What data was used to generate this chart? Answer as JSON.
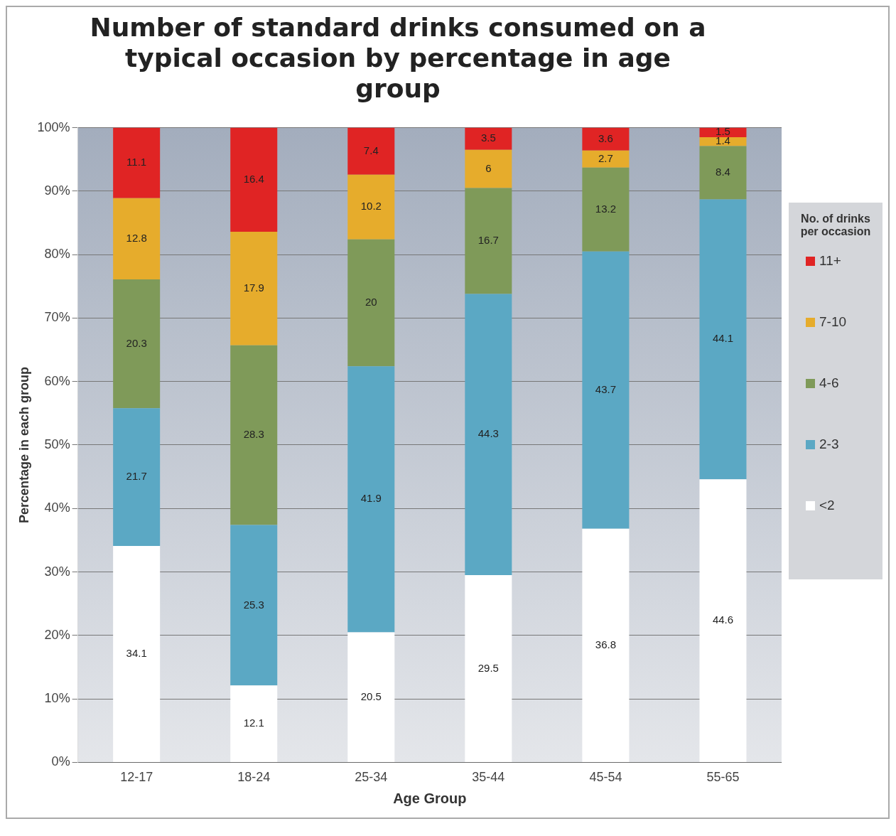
{
  "chart_data": {
    "type": "bar",
    "title": "Number of standard drinks consumed on a typical occasion by percentage in age group",
    "xlabel": "Age Group",
    "ylabel": "Percentage in each group",
    "legend_title": "No. of drinks per occasion",
    "categories": [
      "12-17",
      "18-24",
      "25-34",
      "35-44",
      "45-54",
      "55-65"
    ],
    "stacked": true,
    "ylim": [
      0,
      100
    ],
    "yticks": [
      {
        "value": 0,
        "label": "0%"
      },
      {
        "value": 10,
        "label": "10%"
      },
      {
        "value": 20,
        "label": "20%"
      },
      {
        "value": 30,
        "label": "30%"
      },
      {
        "value": 40,
        "label": "40%"
      },
      {
        "value": 50,
        "label": "50%"
      },
      {
        "value": 60,
        "label": "60%"
      },
      {
        "value": 70,
        "label": "70%"
      },
      {
        "value": 80,
        "label": "80%"
      },
      {
        "value": 90,
        "label": "90%"
      },
      {
        "value": 100,
        "label": "100%"
      }
    ],
    "grid": "y",
    "legend": "right",
    "data_labels": true,
    "series": [
      {
        "name": "<2",
        "color": "#ffffff",
        "values": [
          34.1,
          12.1,
          20.5,
          29.5,
          36.8,
          44.6
        ]
      },
      {
        "name": "2-3",
        "color": "#5ba8c4",
        "values": [
          21.7,
          25.3,
          41.9,
          44.3,
          43.7,
          44.1
        ]
      },
      {
        "name": "4-6",
        "color": "#7f9a59",
        "values": [
          20.3,
          28.3,
          20,
          16.7,
          13.2,
          8.4
        ]
      },
      {
        "name": "7-10",
        "color": "#e6ac2c",
        "values": [
          12.8,
          17.9,
          10.2,
          6,
          2.7,
          1.4
        ]
      },
      {
        "name": "11+",
        "color": "#e02424",
        "values": [
          11.1,
          16.4,
          7.4,
          3.5,
          3.6,
          1.5
        ]
      }
    ]
  }
}
